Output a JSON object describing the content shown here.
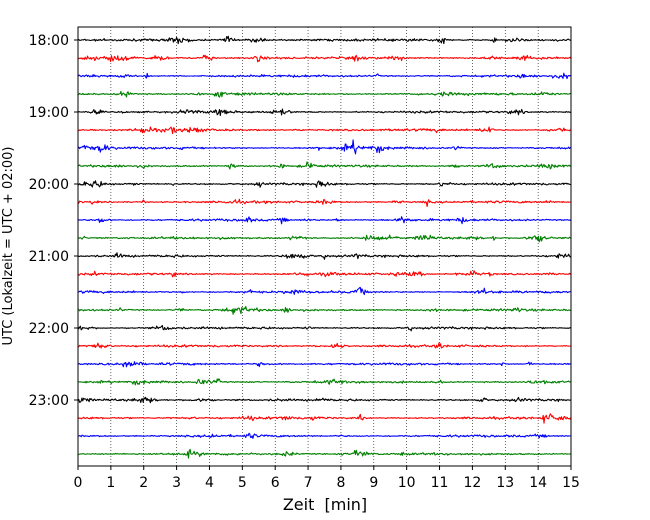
{
  "chart_data": {
    "type": "line",
    "title": "",
    "xlabel": "Zeit  [min]",
    "ylabel": "UTC (Lokalzeit = UTC + 02:00)",
    "xlim": [
      0,
      15
    ],
    "x_ticks": [
      "0",
      "1",
      "2",
      "3",
      "4",
      "5",
      "6",
      "7",
      "8",
      "9",
      "10",
      "11",
      "12",
      "13",
      "14",
      "15"
    ],
    "y_ticks": [
      "18:00",
      "19:00",
      "20:00",
      "21:00",
      "22:00",
      "23:00"
    ],
    "row_interval_minutes": 15,
    "grid": "vertical dotted lines at each minute",
    "legend": "none",
    "trace_colors": [
      "#000000",
      "#ff0000",
      "#0000ff",
      "#008000"
    ],
    "series": [
      {
        "start": "18:00",
        "color": "#000000"
      },
      {
        "start": "18:15",
        "color": "#ff0000"
      },
      {
        "start": "18:30",
        "color": "#0000ff"
      },
      {
        "start": "18:45",
        "color": "#008000"
      },
      {
        "start": "19:00",
        "color": "#000000"
      },
      {
        "start": "19:15",
        "color": "#ff0000"
      },
      {
        "start": "19:30",
        "color": "#0000ff"
      },
      {
        "start": "19:45",
        "color": "#008000"
      },
      {
        "start": "20:00",
        "color": "#000000"
      },
      {
        "start": "20:15",
        "color": "#ff0000"
      },
      {
        "start": "20:30",
        "color": "#0000ff"
      },
      {
        "start": "20:45",
        "color": "#008000"
      },
      {
        "start": "21:00",
        "color": "#000000"
      },
      {
        "start": "21:15",
        "color": "#ff0000"
      },
      {
        "start": "21:30",
        "color": "#0000ff"
      },
      {
        "start": "21:45",
        "color": "#008000"
      },
      {
        "start": "22:00",
        "color": "#000000"
      },
      {
        "start": "22:15",
        "color": "#ff0000"
      },
      {
        "start": "22:30",
        "color": "#0000ff"
      },
      {
        "start": "22:45",
        "color": "#008000"
      },
      {
        "start": "23:00",
        "color": "#000000"
      },
      {
        "start": "23:15",
        "color": "#ff0000"
      },
      {
        "start": "23:30",
        "color": "#0000ff"
      },
      {
        "start": "23:45",
        "color": "#008000"
      }
    ]
  }
}
